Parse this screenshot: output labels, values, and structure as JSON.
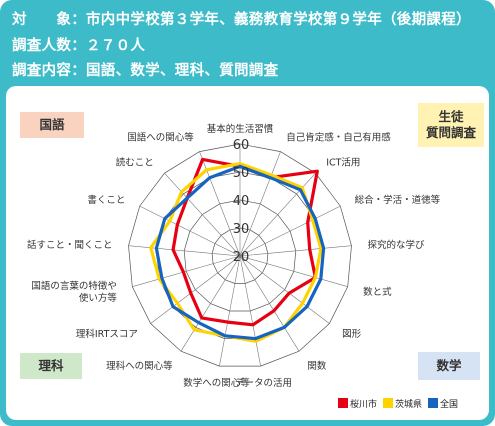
{
  "header": {
    "line1": "対　　象：市内中学校第３学年、義務教育学校第９学年（後期課程）",
    "line2": "調査人数：２７０人",
    "line3": "調査内容：国語、数学、理科、質問調査"
  },
  "tags": {
    "kokugo": "国語",
    "seito": "生徒\n質問調査",
    "rika": "理科",
    "sugaku": "数学"
  },
  "colors": {
    "sakuragawa": "#e60012",
    "ibaraki": "#ffd200",
    "zenkoku": "#1565c0",
    "kokugo_tag": "#f9d3bf",
    "seito_tag": "#fff2b3",
    "rika_tag": "#cfe8c9",
    "sugaku_tag": "#d6e3f5"
  },
  "chart_data": {
    "type": "radar",
    "axes": [
      "基本的生活習慣",
      "自己肯定感・自己有用感",
      "ICT活用",
      "総合・学活・道徳等",
      "探究的な学び",
      "数と式",
      "図形",
      "関数",
      "データの活用",
      "数学への関心等",
      "理科への関心等",
      "理科IRTスコア",
      "国語の言葉の特徴や\n使い方等",
      "話すこと・聞くこと",
      "書くこと",
      "読むこと",
      "国語への関心等"
    ],
    "ticks": [
      20,
      30,
      40,
      50,
      60
    ],
    "rlim": [
      20,
      60
    ],
    "series": [
      {
        "name": "桜川市",
        "values": [
          52,
          50,
          61,
          47,
          45,
          48,
          42,
          43,
          45,
          44,
          46,
          42,
          41,
          44,
          45,
          48,
          57
        ]
      },
      {
        "name": "茨城県",
        "values": [
          53,
          51,
          53,
          49,
          49,
          48,
          48,
          50,
          51,
          49,
          51,
          48,
          50,
          52,
          48,
          51,
          53
        ]
      },
      {
        "name": "全国",
        "values": [
          52,
          50,
          52,
          50,
          50,
          50,
          50,
          50,
          50,
          49,
          48,
          50,
          49,
          50,
          50,
          48,
          50
        ]
      }
    ],
    "legend": [
      "桜川市",
      "茨城県",
      "全国"
    ]
  }
}
